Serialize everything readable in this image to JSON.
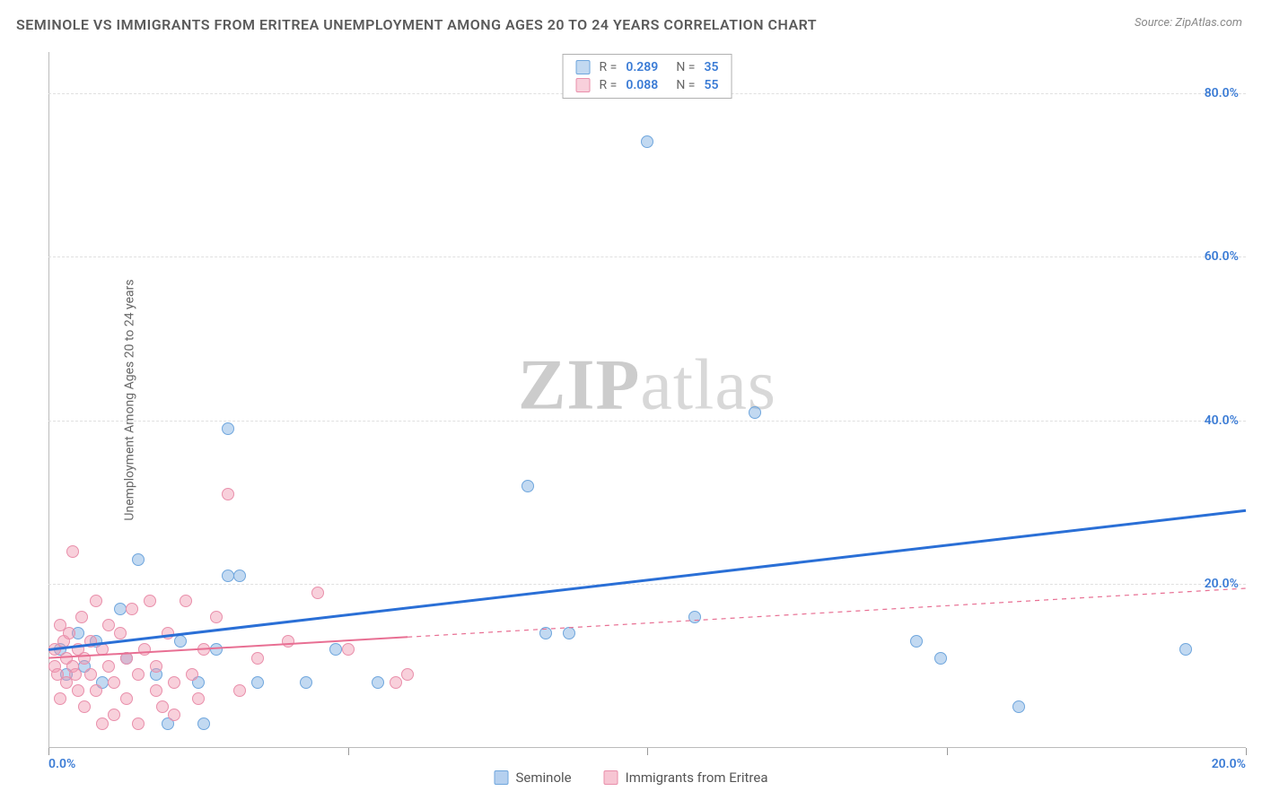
{
  "title": "SEMINOLE VS IMMIGRANTS FROM ERITREA UNEMPLOYMENT AMONG AGES 20 TO 24 YEARS CORRELATION CHART",
  "source": "Source: ZipAtlas.com",
  "ylabel": "Unemployment Among Ages 20 to 24 years",
  "watermark_a": "ZIP",
  "watermark_b": "atlas",
  "chart": {
    "type": "scatter",
    "xlim": [
      0,
      20
    ],
    "ylim": [
      0,
      85
    ],
    "x_ticks_major": [
      0,
      5,
      10,
      15,
      20
    ],
    "x_tick_labels": [
      {
        "v": 0,
        "t": "0.0%",
        "color": "#3a7bd5"
      },
      {
        "v": 20,
        "t": "20.0%",
        "color": "#3a7bd5"
      }
    ],
    "y_ticks": [
      {
        "v": 20,
        "t": "20.0%",
        "color": "#3a7bd5"
      },
      {
        "v": 40,
        "t": "40.0%",
        "color": "#3a7bd5"
      },
      {
        "v": 60,
        "t": "60.0%",
        "color": "#3a7bd5"
      },
      {
        "v": 80,
        "t": "80.0%",
        "color": "#3a7bd5"
      }
    ],
    "grid_y": [
      20,
      40,
      60,
      80
    ],
    "grid_color": "#e0e0e0",
    "background_color": "#ffffff",
    "axis_color": "#bbbbbb"
  },
  "series": [
    {
      "name": "Seminole",
      "fill": "rgba(120,170,225,0.45)",
      "stroke": "#6fa6dd",
      "trend_color": "#2a6fd6",
      "trend_width": 3,
      "trend_dash": "none",
      "trend_extend_dash": "none",
      "solid_extent_x": 20,
      "R": "0.289",
      "N": "35",
      "trend": {
        "x1": 0,
        "y1": 12,
        "x2": 20,
        "y2": 29
      },
      "points": [
        [
          0.2,
          12
        ],
        [
          0.3,
          9
        ],
        [
          0.5,
          14
        ],
        [
          0.6,
          10
        ],
        [
          0.8,
          13
        ],
        [
          0.9,
          8
        ],
        [
          1.2,
          17
        ],
        [
          1.3,
          11
        ],
        [
          1.5,
          23
        ],
        [
          1.8,
          9
        ],
        [
          2.0,
          3
        ],
        [
          2.2,
          13
        ],
        [
          2.5,
          8
        ],
        [
          2.6,
          3
        ],
        [
          2.8,
          12
        ],
        [
          3.0,
          21
        ],
        [
          3.0,
          39
        ],
        [
          3.2,
          21
        ],
        [
          3.5,
          8
        ],
        [
          4.3,
          8
        ],
        [
          4.8,
          12
        ],
        [
          5.5,
          8
        ],
        [
          8.0,
          32
        ],
        [
          8.3,
          14
        ],
        [
          8.7,
          14
        ],
        [
          10.0,
          74
        ],
        [
          10.8,
          16
        ],
        [
          11.8,
          41
        ],
        [
          14.5,
          13
        ],
        [
          14.9,
          11
        ],
        [
          16.2,
          5
        ],
        [
          19.0,
          12
        ]
      ]
    },
    {
      "name": "Immigrants from Eritrea",
      "fill": "rgba(240,150,175,0.45)",
      "stroke": "#e98fab",
      "trend_color": "#e86f93",
      "trend_width": 2,
      "trend_dash": "none",
      "trend_extend_dash": "5,5",
      "solid_extent_x": 6,
      "R": "0.088",
      "N": "55",
      "trend": {
        "x1": 0,
        "y1": 11,
        "x2": 20,
        "y2": 19.5
      },
      "points": [
        [
          0.1,
          10
        ],
        [
          0.1,
          12
        ],
        [
          0.15,
          9
        ],
        [
          0.2,
          15
        ],
        [
          0.2,
          6
        ],
        [
          0.25,
          13
        ],
        [
          0.3,
          11
        ],
        [
          0.3,
          8
        ],
        [
          0.35,
          14
        ],
        [
          0.4,
          10
        ],
        [
          0.4,
          24
        ],
        [
          0.45,
          9
        ],
        [
          0.5,
          12
        ],
        [
          0.5,
          7
        ],
        [
          0.55,
          16
        ],
        [
          0.6,
          11
        ],
        [
          0.6,
          5
        ],
        [
          0.7,
          13
        ],
        [
          0.7,
          9
        ],
        [
          0.8,
          18
        ],
        [
          0.8,
          7
        ],
        [
          0.9,
          12
        ],
        [
          0.9,
          3
        ],
        [
          1.0,
          10
        ],
        [
          1.0,
          15
        ],
        [
          1.1,
          8
        ],
        [
          1.1,
          4
        ],
        [
          1.2,
          14
        ],
        [
          1.3,
          6
        ],
        [
          1.3,
          11
        ],
        [
          1.4,
          17
        ],
        [
          1.5,
          9
        ],
        [
          1.5,
          3
        ],
        [
          1.6,
          12
        ],
        [
          1.7,
          18
        ],
        [
          1.8,
          7
        ],
        [
          1.8,
          10
        ],
        [
          1.9,
          5
        ],
        [
          2.0,
          14
        ],
        [
          2.1,
          8
        ],
        [
          2.1,
          4
        ],
        [
          2.3,
          18
        ],
        [
          2.4,
          9
        ],
        [
          2.5,
          6
        ],
        [
          2.6,
          12
        ],
        [
          2.8,
          16
        ],
        [
          3.0,
          31
        ],
        [
          3.2,
          7
        ],
        [
          3.5,
          11
        ],
        [
          4.0,
          13
        ],
        [
          4.5,
          19
        ],
        [
          5.0,
          12
        ],
        [
          5.8,
          8
        ],
        [
          6.0,
          9
        ]
      ]
    }
  ],
  "legend_top": {
    "r_label": "R =",
    "n_label": "N =",
    "value_color": "#3a7bd5",
    "text_color": "#666666"
  },
  "legend_bottom": [
    {
      "label": "Seminole",
      "fill": "rgba(120,170,225,0.55)",
      "stroke": "#6fa6dd"
    },
    {
      "label": "Immigrants from Eritrea",
      "fill": "rgba(240,150,175,0.55)",
      "stroke": "#e98fab"
    }
  ]
}
